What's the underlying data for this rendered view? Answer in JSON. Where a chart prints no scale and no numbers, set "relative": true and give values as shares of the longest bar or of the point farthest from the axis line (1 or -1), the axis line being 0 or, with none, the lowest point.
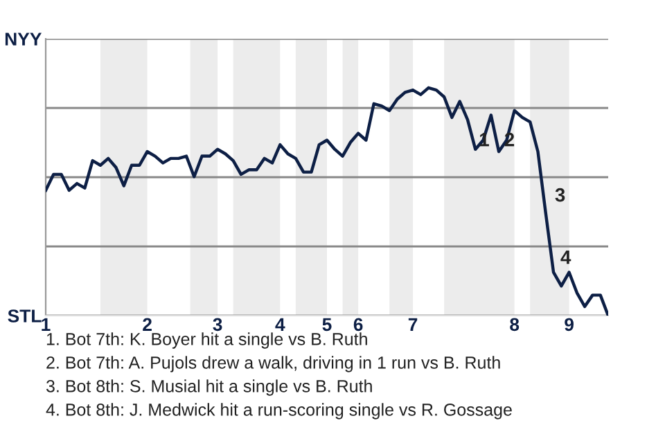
{
  "chart_data": {
    "type": "line",
    "relative": true,
    "categories": [
      "1",
      null,
      null,
      null,
      null,
      null,
      null,
      null,
      null,
      null,
      null,
      null,
      null,
      "2",
      null,
      null,
      null,
      null,
      null,
      null,
      null,
      null,
      "3",
      null,
      null,
      null,
      null,
      null,
      null,
      null,
      "4",
      null,
      null,
      null,
      null,
      null,
      "5",
      null,
      null,
      null,
      "6",
      null,
      null,
      null,
      null,
      null,
      null,
      "7",
      null,
      null,
      null,
      null,
      null,
      null,
      null,
      null,
      null,
      null,
      null,
      null,
      "8",
      null,
      null,
      null,
      null,
      null,
      null,
      "9",
      null,
      null,
      null,
      null,
      null
    ],
    "series": [
      {
        "color": "#0d1f45",
        "values": [
          0.55,
          0.62,
          0.62,
          0.55,
          0.58,
          0.56,
          0.68,
          0.66,
          0.69,
          0.65,
          0.57,
          0.66,
          0.66,
          0.72,
          0.7,
          0.67,
          0.69,
          0.69,
          0.7,
          0.61,
          0.7,
          0.7,
          0.73,
          0.71,
          0.68,
          0.62,
          0.64,
          0.64,
          0.69,
          0.67,
          0.75,
          0.71,
          0.69,
          0.63,
          0.63,
          0.75,
          0.77,
          0.73,
          0.7,
          0.76,
          0.8,
          0.77,
          0.93,
          0.92,
          0.9,
          0.95,
          0.98,
          0.99,
          0.97,
          1,
          0.99,
          0.96,
          0.87,
          0.94,
          0.86,
          0.73,
          0.77,
          0.88,
          0.72,
          0.77,
          0.9,
          0.87,
          0.85,
          0.72,
          0.45,
          0.19,
          0.13,
          0.19,
          0.1,
          0.04,
          0.09,
          0.09,
          0
        ]
      }
    ],
    "grid": "y",
    "line_style": "solid",
    "marker": "none",
    "legend": false,
    "annotations": [
      "NYY",
      "STL",
      "1",
      "2",
      "3",
      "4",
      "1. Bot 7th: K. Boyer hit a single vs B. Ruth",
      "2. Bot 7th: A. Pujols drew a walk, driving in 1 run vs B. Ruth",
      "3. Bot 8th: S. Musial hit a single vs B. Ruth",
      "4. Bot 8th: J. Medwick hit a run-scoring single vs R. Gossage"
    ]
  }
}
